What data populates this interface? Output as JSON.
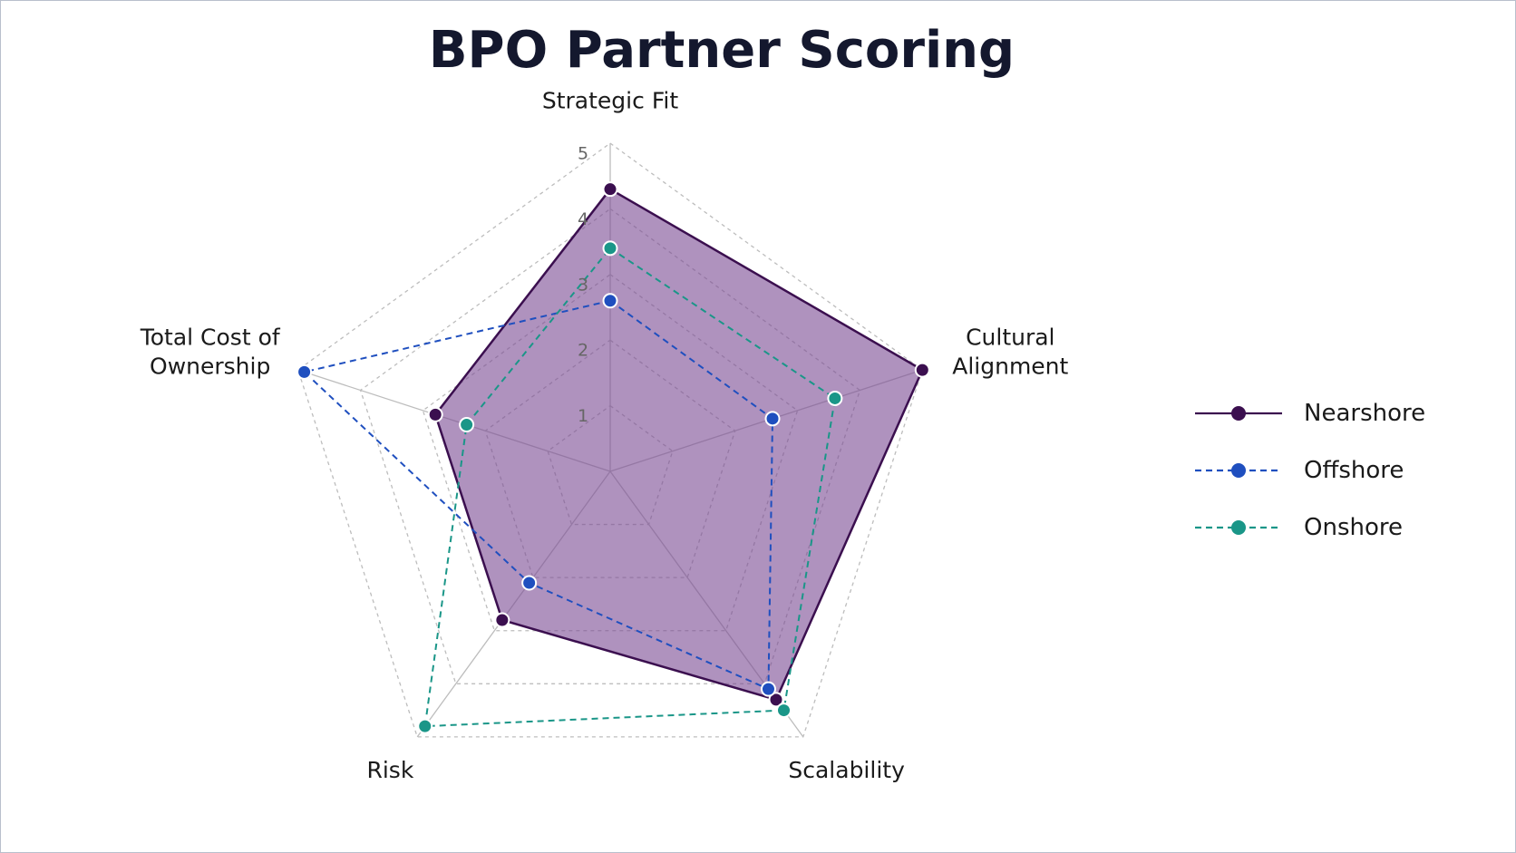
{
  "chart_data": {
    "type": "radar",
    "title": "BPO Partner Scoring",
    "categories": [
      "Strategic Fit",
      "Cultural Alignment",
      "Scalability",
      "Risk",
      "Total Cost of Ownership"
    ],
    "rlim": [
      0,
      5
    ],
    "rticks": [
      1,
      2,
      3,
      4,
      5
    ],
    "grid": true,
    "legend": "right",
    "series": [
      {
        "name": "Nearshore",
        "color": "#3b0f4f",
        "fill": "#7a4a92",
        "dash": false,
        "values": [
          4.3,
          5.0,
          4.3,
          2.8,
          2.8
        ]
      },
      {
        "name": "Offshore",
        "color": "#1f4fbf",
        "dash": true,
        "values": [
          2.6,
          2.6,
          4.1,
          2.1,
          4.9
        ]
      },
      {
        "name": "Onshore",
        "color": "#1a9688",
        "dash": true,
        "values": [
          3.4,
          3.6,
          4.5,
          4.8,
          2.3
        ]
      }
    ]
  }
}
